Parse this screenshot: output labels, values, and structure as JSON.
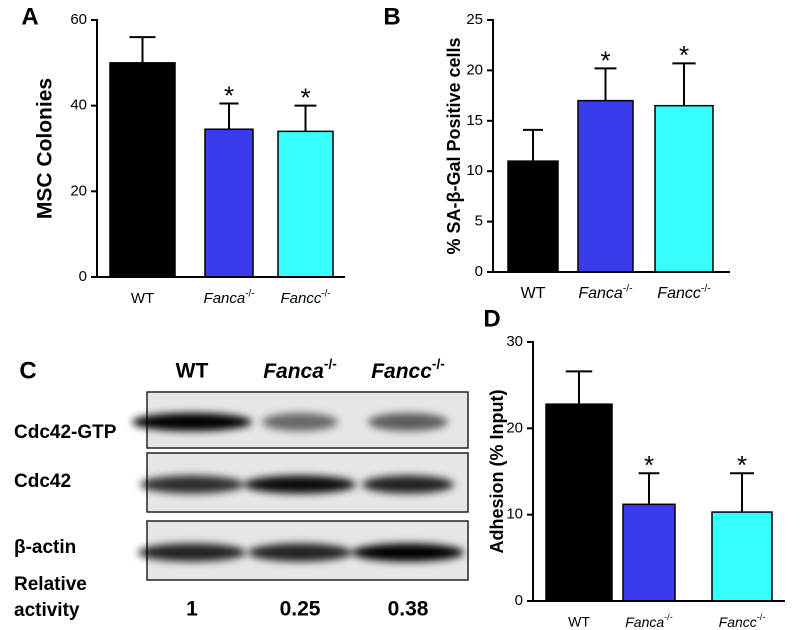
{
  "chart_data": [
    {
      "type": "bar",
      "panel": "A",
      "ylabel": "MSC Colonies",
      "categories": [
        "WT",
        "Fanca-/-",
        "Fancc-/-"
      ],
      "values": [
        50,
        34.5,
        34
      ],
      "errors": [
        6,
        6,
        6
      ],
      "colors": [
        "#000000",
        "#3a3aee",
        "#38fdfd"
      ],
      "significance": [
        null,
        "*",
        "*"
      ],
      "ylim": [
        0,
        60
      ],
      "yticks": [
        0,
        20,
        40,
        60
      ],
      "grid": false
    },
    {
      "type": "bar",
      "panel": "B",
      "ylabel": "% SA-β-Gal Positive cells",
      "categories": [
        "WT",
        "Fanca-/-",
        "Fancc-/-"
      ],
      "values": [
        11,
        17,
        16.5
      ],
      "errors": [
        3.1,
        3.2,
        4.2
      ],
      "colors": [
        "#000000",
        "#3a3aee",
        "#38fdfd"
      ],
      "significance": [
        null,
        "*",
        "*"
      ],
      "ylim": [
        0,
        25
      ],
      "yticks": [
        0,
        5,
        10,
        15,
        20,
        25
      ],
      "grid": false
    },
    {
      "type": "blot",
      "panel": "C",
      "lanes": [
        "WT",
        "Fanca-/-",
        "Fancc-/-"
      ],
      "rows": [
        "Cdc42-GTP",
        "Cdc42",
        "β-actin"
      ],
      "value_name": "Relative activity",
      "values": [
        1,
        0.25,
        0.38
      ]
    },
    {
      "type": "bar",
      "panel": "D",
      "ylabel": "Adhesion (% Input)",
      "categories": [
        "WT",
        "Fanca-/-",
        "Fancc-/-"
      ],
      "values": [
        22.8,
        11.2,
        10.3
      ],
      "errors": [
        3.8,
        3.6,
        4.5
      ],
      "colors": [
        "#000000",
        "#3a3aee",
        "#38fdfd"
      ],
      "significance": [
        null,
        "*",
        "*"
      ],
      "ylim": [
        0,
        30
      ],
      "yticks": [
        0,
        10,
        20,
        30
      ],
      "grid": false
    }
  ]
}
